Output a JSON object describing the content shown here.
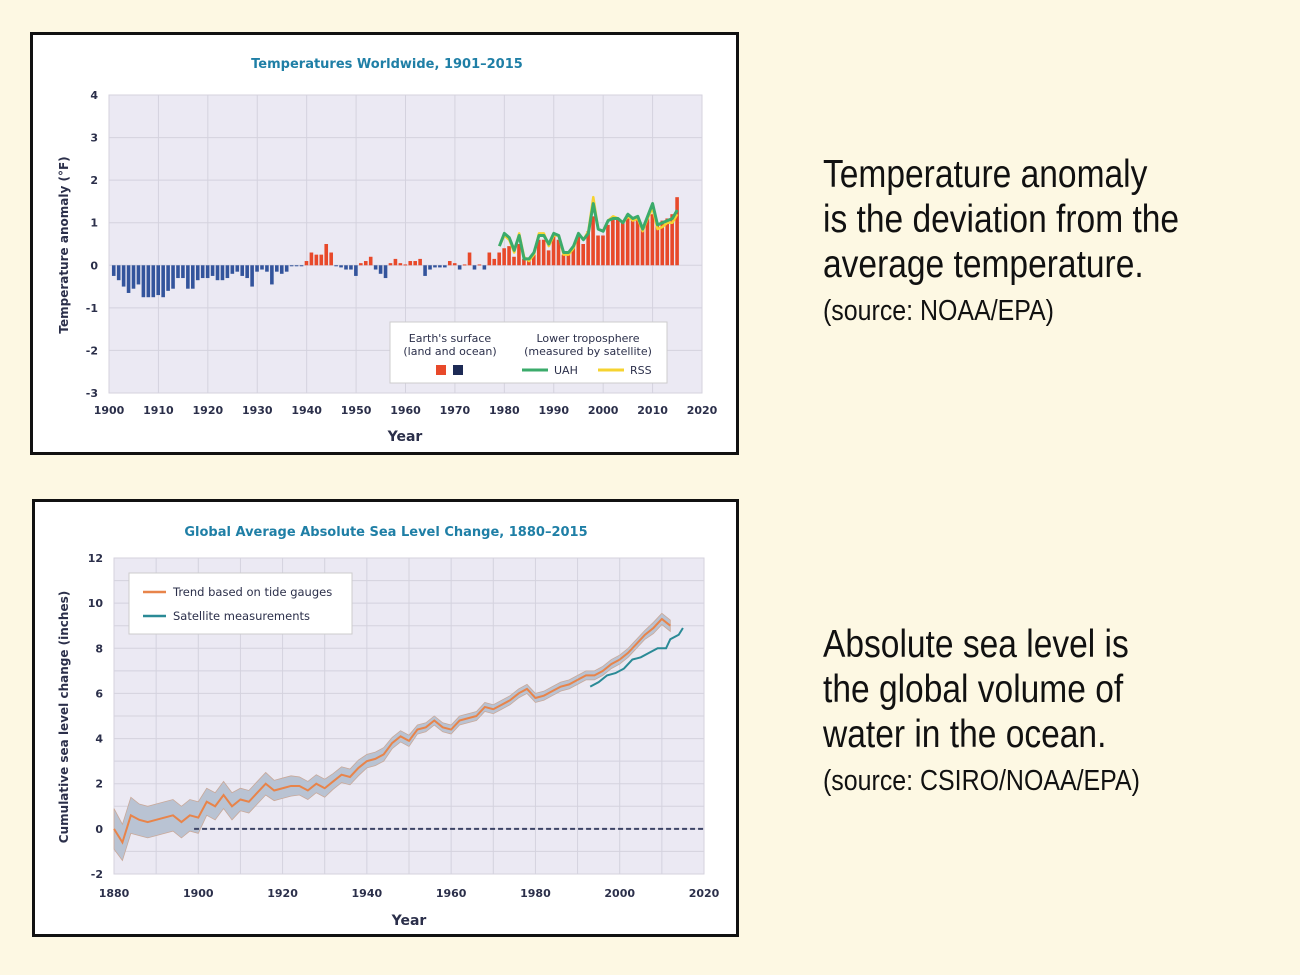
{
  "notes": [
    {
      "lines": [
        "Temperature anomaly",
        "is the deviation from the",
        "average temperature."
      ],
      "source": "(source: NOAA/EPA)"
    },
    {
      "lines": [
        "Absolute sea level is",
        "the global volume of",
        "water in the ocean."
      ],
      "source": "(source: CSIRO/NOAA/EPA)"
    }
  ],
  "colors": {
    "background": "#fdf8e3",
    "plot_bg": "#ebe9f3",
    "title": "#1f7fa6",
    "warm_bar": "#e8492a",
    "cool_bar": "#33549c",
    "uah": "#3bab6b",
    "rss": "#f6d330",
    "tide": "#e8844a",
    "band": "#b9c3d3",
    "satellite": "#2a8a96"
  },
  "chart_data": [
    {
      "type": "bar",
      "title": "Temperatures Worldwide, 1901–2015",
      "xlabel": "Year",
      "ylabel": "Temperature anomaly (°F)",
      "xlim": [
        1900,
        2020
      ],
      "ylim": [
        -3,
        4
      ],
      "xticks": [
        "1900",
        "1910",
        "1920",
        "1930",
        "1940",
        "1950",
        "1960",
        "1970",
        "1980",
        "1990",
        "2000",
        "2010",
        "2020"
      ],
      "yticks": [
        "4",
        "3",
        "2",
        "1",
        "0",
        "-1",
        "-2",
        "-3"
      ],
      "grid": true,
      "legend": {
        "placement": "bottom-right",
        "surface_heading": [
          "Earth's surface",
          "(land and ocean)"
        ],
        "satellite_heading": [
          "Lower troposphere",
          "(measured by satellite)"
        ],
        "entries": [
          "UAH",
          "RSS"
        ]
      },
      "surface": {
        "x_start": 1901,
        "values": [
          -0.25,
          -0.35,
          -0.5,
          -0.65,
          -0.55,
          -0.45,
          -0.75,
          -0.75,
          -0.75,
          -0.7,
          -0.75,
          -0.6,
          -0.55,
          -0.3,
          -0.3,
          -0.55,
          -0.55,
          -0.35,
          -0.3,
          -0.3,
          -0.25,
          -0.35,
          -0.35,
          -0.3,
          -0.2,
          -0.15,
          -0.25,
          -0.3,
          -0.5,
          -0.15,
          -0.1,
          -0.15,
          -0.45,
          -0.15,
          -0.2,
          -0.15,
          -0.02,
          -0.02,
          -0.02,
          0.1,
          0.3,
          0.25,
          0.25,
          0.5,
          0.3,
          -0.02,
          -0.05,
          -0.1,
          -0.1,
          -0.25,
          0.05,
          0.1,
          0.2,
          -0.1,
          -0.2,
          -0.3,
          0.05,
          0.15,
          0.05,
          0.02,
          0.1,
          0.1,
          0.15,
          -0.25,
          -0.1,
          -0.05,
          -0.05,
          -0.05,
          0.1,
          0.05,
          -0.1,
          0.02,
          0.3,
          -0.1,
          0.02,
          -0.1,
          0.3,
          0.15,
          0.3,
          0.4,
          0.45,
          0.2,
          0.5,
          0.15,
          0.15,
          0.25,
          0.6,
          0.6,
          0.35,
          0.7,
          0.6,
          0.25,
          0.3,
          0.45,
          0.7,
          0.5,
          0.8,
          1.15,
          0.7,
          0.7,
          0.95,
          1.1,
          1.1,
          1.0,
          1.2,
          1.1,
          1.1,
          0.85,
          1.1,
          1.2,
          0.95,
          1.05,
          1.1,
          1.2,
          1.6
        ]
      },
      "series": [
        {
          "name": "UAH",
          "x_start": 1979,
          "values": [
            0.45,
            0.75,
            0.65,
            0.35,
            0.7,
            0.15,
            0.15,
            0.3,
            0.7,
            0.7,
            0.5,
            0.75,
            0.7,
            0.3,
            0.3,
            0.45,
            0.75,
            0.6,
            0.75,
            1.45,
            0.85,
            0.8,
            1.05,
            1.1,
            1.1,
            1.0,
            1.2,
            1.1,
            1.15,
            0.85,
            1.15,
            1.45,
            0.95,
            1.0,
            1.05,
            1.1,
            1.3
          ]
        },
        {
          "name": "RSS",
          "x_start": 1979,
          "values": [
            0.45,
            0.7,
            0.6,
            0.3,
            0.75,
            0.2,
            0.1,
            0.25,
            0.75,
            0.75,
            0.45,
            0.7,
            0.7,
            0.25,
            0.25,
            0.4,
            0.75,
            0.6,
            0.8,
            1.6,
            0.85,
            0.8,
            1.05,
            1.15,
            1.1,
            1.0,
            1.15,
            1.05,
            1.1,
            0.8,
            1.1,
            1.35,
            0.85,
            0.9,
            1.0,
            1.0,
            1.2
          ]
        }
      ]
    },
    {
      "type": "line",
      "title": "Global Average Absolute Sea Level Change, 1880–2015",
      "xlabel": "Year",
      "ylabel": "Cumulative sea level change (inches)",
      "xlim": [
        1880,
        2020
      ],
      "ylim": [
        -2,
        12
      ],
      "xticks": [
        "1880",
        "1900",
        "1920",
        "1940",
        "1960",
        "1980",
        "2000",
        "2020"
      ],
      "yticks": [
        "12",
        "10",
        "8",
        "6",
        "4",
        "2",
        "0",
        "-2"
      ],
      "grid": true,
      "legend": {
        "placement": "top-left"
      },
      "baseline": {
        "value": 0,
        "from": 1899,
        "style": "dashed"
      },
      "series": [
        {
          "name": "Trend based on tide gauges",
          "x": [
            1880,
            1882,
            1884,
            1886,
            1888,
            1890,
            1892,
            1894,
            1896,
            1898,
            1900,
            1902,
            1904,
            1906,
            1908,
            1910,
            1912,
            1914,
            1916,
            1918,
            1920,
            1922,
            1924,
            1926,
            1928,
            1930,
            1932,
            1934,
            1936,
            1938,
            1940,
            1942,
            1944,
            1946,
            1948,
            1950,
            1952,
            1954,
            1956,
            1958,
            1960,
            1962,
            1964,
            1966,
            1968,
            1970,
            1972,
            1974,
            1976,
            1978,
            1980,
            1982,
            1984,
            1986,
            1988,
            1990,
            1992,
            1994,
            1996,
            1998,
            2000,
            2002,
            2004,
            2006,
            2008,
            2010,
            2012
          ],
          "y": [
            0.0,
            -0.6,
            0.6,
            0.4,
            0.3,
            0.4,
            0.5,
            0.6,
            0.3,
            0.6,
            0.5,
            1.2,
            1.0,
            1.5,
            1.0,
            1.3,
            1.2,
            1.6,
            2.0,
            1.7,
            1.8,
            1.9,
            1.9,
            1.7,
            2.0,
            1.8,
            2.1,
            2.4,
            2.3,
            2.7,
            3.0,
            3.1,
            3.3,
            3.8,
            4.1,
            3.9,
            4.4,
            4.5,
            4.8,
            4.5,
            4.4,
            4.8,
            4.9,
            5.0,
            5.4,
            5.3,
            5.5,
            5.7,
            6.0,
            6.2,
            5.8,
            5.9,
            6.1,
            6.3,
            6.4,
            6.6,
            6.8,
            6.8,
            7.0,
            7.3,
            7.5,
            7.8,
            8.2,
            8.6,
            8.9,
            9.3,
            9.0
          ],
          "uncertainty": [
            0.9,
            0.8,
            0.8,
            0.7,
            0.7,
            0.7,
            0.7,
            0.7,
            0.7,
            0.7,
            0.7,
            0.6,
            0.6,
            0.6,
            0.6,
            0.5,
            0.5,
            0.5,
            0.5,
            0.45,
            0.45,
            0.45,
            0.4,
            0.4,
            0.4,
            0.4,
            0.35,
            0.35,
            0.35,
            0.35,
            0.3,
            0.3,
            0.3,
            0.25,
            0.25,
            0.25,
            0.2,
            0.2,
            0.2,
            0.2,
            0.2,
            0.2,
            0.2,
            0.2,
            0.2,
            0.2,
            0.2,
            0.2,
            0.2,
            0.2,
            0.2,
            0.2,
            0.2,
            0.2,
            0.2,
            0.2,
            0.2,
            0.2,
            0.2,
            0.2,
            0.2,
            0.2,
            0.2,
            0.2,
            0.25,
            0.25,
            0.25
          ]
        },
        {
          "name": "Satellite measurements",
          "x": [
            1993,
            1995,
            1997,
            1999,
            2001,
            2003,
            2005,
            2007,
            2009,
            2011,
            2012,
            2014,
            2015
          ],
          "y": [
            6.3,
            6.5,
            6.8,
            6.9,
            7.1,
            7.5,
            7.6,
            7.8,
            8.0,
            8.0,
            8.4,
            8.6,
            8.9
          ]
        }
      ]
    }
  ]
}
